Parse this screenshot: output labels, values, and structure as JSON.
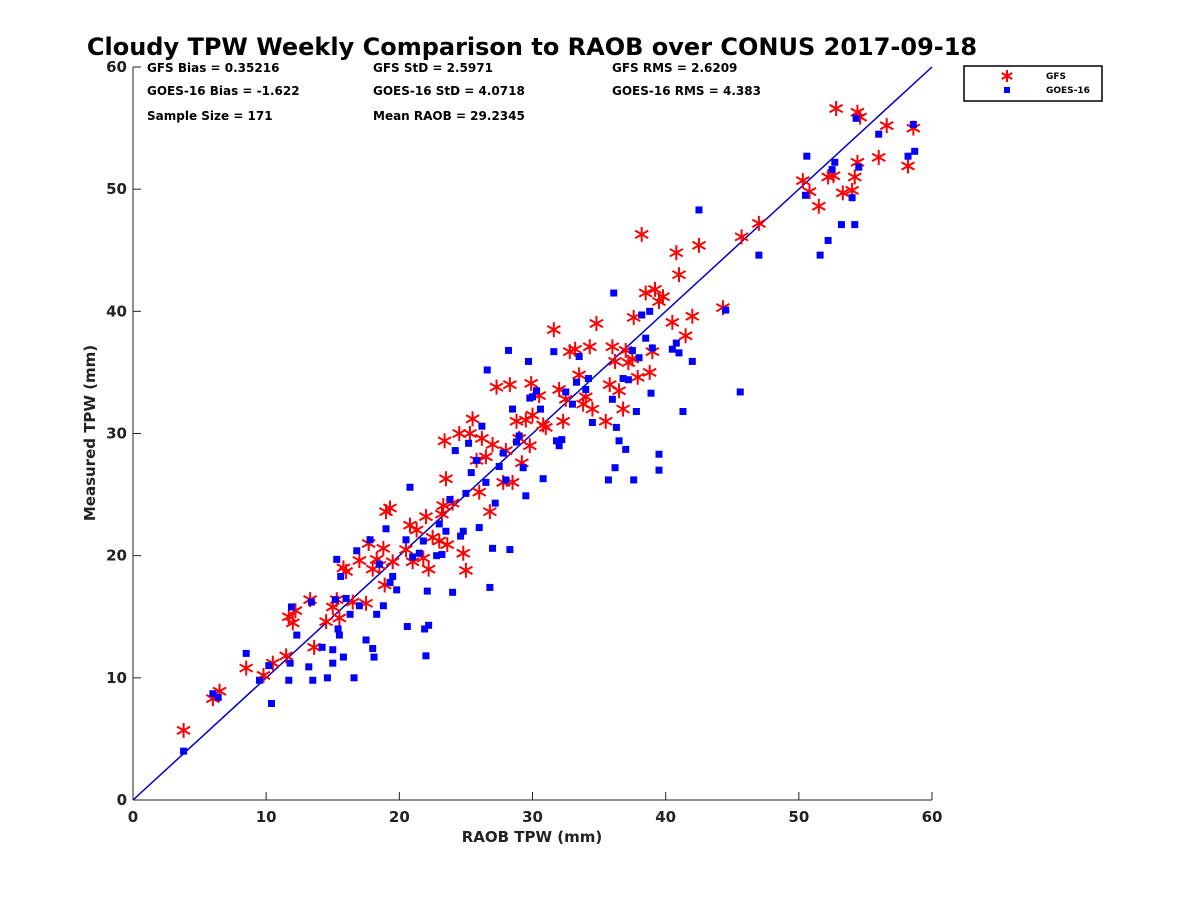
{
  "chart_data": {
    "type": "scatter",
    "title": "Cloudy TPW Weekly Comparison to RAOB over CONUS 2017-09-18",
    "xlabel": "RAOB TPW (mm)",
    "ylabel": "Measured TPW (mm)",
    "xlim": [
      0,
      60
    ],
    "ylim": [
      0,
      60
    ],
    "xticks": [
      "0",
      "10",
      "20",
      "30",
      "40",
      "50",
      "60"
    ],
    "yticks": [
      "0",
      "10",
      "20",
      "30",
      "40",
      "50",
      "60"
    ],
    "grid": false,
    "legend_position": "outside-top-right",
    "reference_line": {
      "x": [
        0,
        60
      ],
      "y": [
        0,
        60
      ],
      "color": "#0000cc"
    },
    "stats": [
      [
        "GFS Bias = 0.35216",
        "GFS StD = 2.5971",
        "GFS RMS = 2.6209"
      ],
      [
        "GOES-16 Bias = -1.622",
        "GOES-16 StD = 4.0718",
        "GOES-16 RMS = 4.383"
      ],
      [
        "Sample Size = 171",
        "Mean RAOB = 29.2345",
        ""
      ]
    ],
    "series": [
      {
        "name": "GFS",
        "marker": "asterisk",
        "color": "#ff0000",
        "points": [
          [
            3.8,
            5.7
          ],
          [
            6.0,
            8.3
          ],
          [
            6.5,
            8.9
          ],
          [
            8.5,
            10.8
          ],
          [
            9.8,
            10.2
          ],
          [
            10.5,
            11.2
          ],
          [
            11.5,
            11.8
          ],
          [
            11.7,
            15.0
          ],
          [
            12.0,
            14.5
          ],
          [
            12.2,
            15.5
          ],
          [
            13.3,
            16.4
          ],
          [
            13.6,
            12.5
          ],
          [
            14.5,
            14.6
          ],
          [
            15.0,
            15.8
          ],
          [
            15.3,
            16.4
          ],
          [
            15.5,
            14.9
          ],
          [
            15.8,
            19.0
          ],
          [
            16.0,
            18.7
          ],
          [
            16.5,
            16.2
          ],
          [
            17.0,
            19.6
          ],
          [
            17.5,
            16.1
          ],
          [
            17.7,
            21.0
          ],
          [
            18.0,
            18.9
          ],
          [
            18.3,
            19.7
          ],
          [
            18.5,
            19.2
          ],
          [
            18.8,
            20.6
          ],
          [
            18.9,
            17.6
          ],
          [
            19.0,
            23.6
          ],
          [
            19.3,
            23.9
          ],
          [
            19.5,
            19.5
          ],
          [
            20.5,
            20.5
          ],
          [
            20.8,
            22.5
          ],
          [
            21.0,
            19.5
          ],
          [
            21.3,
            22.1
          ],
          [
            21.8,
            19.8
          ],
          [
            22.0,
            23.2
          ],
          [
            22.2,
            18.9
          ],
          [
            22.5,
            21.5
          ],
          [
            23.0,
            21.2
          ],
          [
            23.2,
            23.4
          ],
          [
            23.3,
            24.1
          ],
          [
            23.4,
            29.4
          ],
          [
            23.5,
            26.3
          ],
          [
            23.6,
            20.9
          ],
          [
            24.0,
            24.3
          ],
          [
            24.5,
            30.0
          ],
          [
            24.8,
            20.2
          ],
          [
            25.0,
            18.8
          ],
          [
            25.3,
            30.0
          ],
          [
            25.5,
            31.2
          ],
          [
            25.8,
            27.8
          ],
          [
            26.0,
            25.2
          ],
          [
            26.2,
            29.6
          ],
          [
            26.5,
            28.1
          ],
          [
            26.8,
            23.6
          ],
          [
            27.0,
            29.1
          ],
          [
            27.3,
            33.8
          ],
          [
            27.8,
            26.0
          ],
          [
            28.0,
            28.6
          ],
          [
            28.3,
            34.0
          ],
          [
            28.5,
            26.0
          ],
          [
            28.8,
            31.0
          ],
          [
            29.0,
            29.6
          ],
          [
            29.2,
            27.6
          ],
          [
            29.5,
            31.1
          ],
          [
            29.8,
            29.0
          ],
          [
            29.9,
            34.1
          ],
          [
            30.0,
            31.5
          ],
          [
            30.5,
            33.1
          ],
          [
            30.8,
            30.7
          ],
          [
            31.0,
            30.5
          ],
          [
            31.6,
            38.5
          ],
          [
            32.0,
            33.6
          ],
          [
            32.3,
            31.0
          ],
          [
            32.5,
            32.8
          ],
          [
            32.8,
            36.7
          ],
          [
            33.2,
            36.9
          ],
          [
            33.5,
            34.8
          ],
          [
            33.8,
            32.4
          ],
          [
            34.0,
            33.0
          ],
          [
            34.3,
            37.1
          ],
          [
            34.5,
            32.0
          ],
          [
            34.8,
            39.0
          ],
          [
            35.5,
            31.0
          ],
          [
            35.8,
            34.0
          ],
          [
            36.0,
            37.1
          ],
          [
            36.2,
            35.9
          ],
          [
            36.5,
            33.5
          ],
          [
            36.8,
            32.0
          ],
          [
            37.0,
            36.8
          ],
          [
            37.2,
            35.8
          ],
          [
            37.5,
            36.1
          ],
          [
            37.6,
            39.5
          ],
          [
            37.9,
            34.6
          ],
          [
            38.2,
            46.3
          ],
          [
            38.5,
            41.5
          ],
          [
            38.8,
            35.0
          ],
          [
            39.0,
            36.7
          ],
          [
            39.2,
            41.8
          ],
          [
            39.5,
            40.8
          ],
          [
            39.8,
            41.2
          ],
          [
            40.5,
            39.1
          ],
          [
            40.8,
            44.8
          ],
          [
            41.0,
            43.0
          ],
          [
            41.5,
            38.0
          ],
          [
            42.0,
            39.6
          ],
          [
            42.5,
            45.4
          ],
          [
            44.3,
            40.3
          ],
          [
            45.7,
            46.1
          ],
          [
            47.0,
            47.2
          ],
          [
            50.3,
            50.7
          ],
          [
            50.8,
            49.8
          ],
          [
            51.5,
            48.6
          ],
          [
            52.2,
            51.0
          ],
          [
            52.6,
            51.1
          ],
          [
            52.8,
            56.6
          ],
          [
            53.3,
            49.7
          ],
          [
            54.0,
            49.9
          ],
          [
            54.2,
            51.0
          ],
          [
            54.4,
            52.2
          ],
          [
            54.4,
            56.3
          ],
          [
            54.6,
            55.9
          ],
          [
            56.0,
            52.6
          ],
          [
            56.6,
            55.2
          ],
          [
            58.2,
            51.9
          ],
          [
            58.6,
            55.0
          ]
        ]
      },
      {
        "name": "GOES-16",
        "marker": "square",
        "color": "#0000ff",
        "points": [
          [
            3.8,
            4.0
          ],
          [
            6.0,
            8.7
          ],
          [
            6.4,
            8.4
          ],
          [
            8.5,
            12.0
          ],
          [
            9.5,
            9.8
          ],
          [
            10.2,
            11.0
          ],
          [
            10.4,
            7.9
          ],
          [
            11.7,
            9.8
          ],
          [
            11.8,
            11.2
          ],
          [
            11.9,
            15.8
          ],
          [
            12.3,
            13.5
          ],
          [
            13.2,
            10.9
          ],
          [
            13.4,
            16.2
          ],
          [
            13.5,
            9.8
          ],
          [
            14.2,
            12.5
          ],
          [
            14.6,
            10.0
          ],
          [
            15.0,
            12.3
          ],
          [
            15.0,
            11.2
          ],
          [
            15.2,
            16.4
          ],
          [
            15.3,
            19.7
          ],
          [
            15.4,
            14.0
          ],
          [
            15.5,
            13.5
          ],
          [
            15.6,
            18.3
          ],
          [
            15.8,
            11.7
          ],
          [
            16.0,
            16.5
          ],
          [
            16.3,
            15.2
          ],
          [
            16.6,
            10.0
          ],
          [
            16.8,
            20.4
          ],
          [
            17.0,
            15.9
          ],
          [
            17.5,
            13.1
          ],
          [
            17.8,
            21.3
          ],
          [
            18.0,
            12.4
          ],
          [
            18.1,
            11.7
          ],
          [
            18.3,
            15.2
          ],
          [
            18.5,
            19.3
          ],
          [
            18.8,
            15.9
          ],
          [
            19.0,
            22.2
          ],
          [
            19.3,
            17.8
          ],
          [
            19.5,
            18.3
          ],
          [
            19.8,
            17.2
          ],
          [
            20.5,
            21.3
          ],
          [
            20.6,
            14.2
          ],
          [
            20.8,
            25.6
          ],
          [
            21.0,
            19.9
          ],
          [
            21.5,
            20.2
          ],
          [
            21.8,
            21.2
          ],
          [
            21.9,
            14.0
          ],
          [
            22.0,
            11.8
          ],
          [
            22.1,
            17.1
          ],
          [
            22.2,
            14.3
          ],
          [
            22.8,
            20.0
          ],
          [
            23.0,
            22.6
          ],
          [
            23.2,
            20.1
          ],
          [
            23.5,
            22.0
          ],
          [
            23.8,
            24.6
          ],
          [
            24.0,
            17.0
          ],
          [
            24.2,
            28.6
          ],
          [
            24.6,
            21.6
          ],
          [
            24.8,
            22.0
          ],
          [
            25.0,
            25.1
          ],
          [
            25.2,
            29.2
          ],
          [
            25.4,
            26.8
          ],
          [
            25.8,
            27.8
          ],
          [
            26.0,
            22.3
          ],
          [
            26.2,
            30.6
          ],
          [
            26.5,
            26.0
          ],
          [
            26.6,
            35.2
          ],
          [
            26.8,
            17.4
          ],
          [
            27.0,
            20.6
          ],
          [
            27.2,
            24.3
          ],
          [
            27.5,
            27.3
          ],
          [
            27.8,
            28.4
          ],
          [
            28.0,
            26.2
          ],
          [
            28.2,
            36.8
          ],
          [
            28.3,
            20.5
          ],
          [
            28.5,
            32.0
          ],
          [
            28.8,
            29.3
          ],
          [
            29.0,
            29.8
          ],
          [
            29.3,
            27.2
          ],
          [
            29.5,
            24.9
          ],
          [
            29.7,
            35.9
          ],
          [
            29.8,
            32.9
          ],
          [
            30.0,
            33.0
          ],
          [
            30.3,
            33.5
          ],
          [
            30.6,
            32.0
          ],
          [
            30.8,
            26.3
          ],
          [
            31.6,
            36.7
          ],
          [
            31.8,
            29.4
          ],
          [
            32.0,
            29.0
          ],
          [
            32.2,
            29.5
          ],
          [
            32.5,
            33.4
          ],
          [
            33.0,
            32.4
          ],
          [
            33.3,
            34.2
          ],
          [
            33.5,
            36.3
          ],
          [
            34.0,
            33.6
          ],
          [
            34.2,
            34.5
          ],
          [
            34.5,
            30.9
          ],
          [
            35.7,
            26.2
          ],
          [
            36.0,
            32.8
          ],
          [
            36.1,
            41.5
          ],
          [
            36.2,
            27.2
          ],
          [
            36.3,
            30.5
          ],
          [
            36.5,
            29.4
          ],
          [
            36.8,
            34.5
          ],
          [
            37.0,
            28.7
          ],
          [
            37.2,
            34.4
          ],
          [
            37.5,
            36.8
          ],
          [
            37.6,
            26.2
          ],
          [
            37.8,
            31.8
          ],
          [
            38.0,
            36.2
          ],
          [
            38.2,
            39.7
          ],
          [
            38.5,
            37.8
          ],
          [
            38.8,
            40.0
          ],
          [
            38.9,
            33.3
          ],
          [
            39.0,
            37.0
          ],
          [
            39.5,
            28.3
          ],
          [
            39.5,
            27.0
          ],
          [
            40.5,
            36.9
          ],
          [
            40.8,
            37.4
          ],
          [
            41.0,
            36.6
          ],
          [
            41.3,
            31.8
          ],
          [
            42.0,
            35.9
          ],
          [
            42.5,
            48.3
          ],
          [
            44.5,
            40.1
          ],
          [
            45.6,
            33.4
          ],
          [
            47.0,
            44.6
          ],
          [
            50.5,
            49.5
          ],
          [
            50.6,
            52.7
          ],
          [
            51.6,
            44.6
          ],
          [
            52.2,
            45.8
          ],
          [
            52.5,
            51.6
          ],
          [
            52.7,
            52.2
          ],
          [
            53.2,
            47.1
          ],
          [
            54.0,
            49.3
          ],
          [
            54.2,
            47.1
          ],
          [
            54.3,
            55.8
          ],
          [
            54.5,
            51.8
          ],
          [
            56.0,
            54.5
          ],
          [
            58.2,
            52.7
          ],
          [
            58.6,
            55.3
          ],
          [
            58.7,
            53.1
          ]
        ]
      }
    ]
  }
}
